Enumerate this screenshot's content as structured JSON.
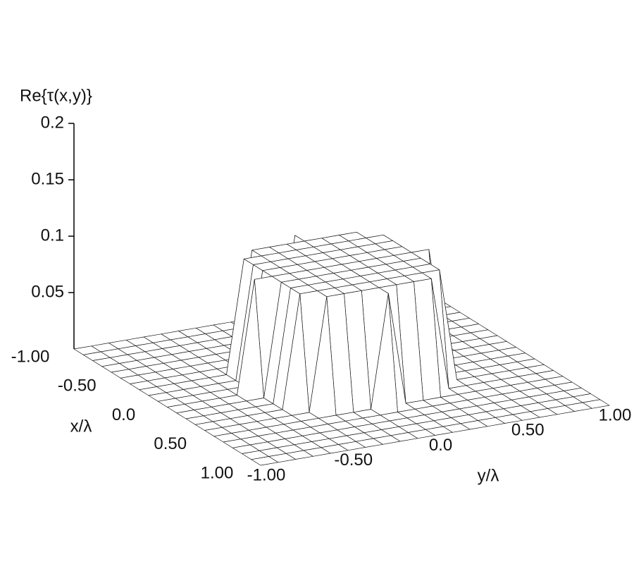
{
  "chart_data": {
    "type": "surface",
    "zlabel": "Re{τ(x,y)}",
    "xlabel": "x/λ",
    "ylabel": "y/λ",
    "zlim": [
      0,
      0.2
    ],
    "zticks": [
      0.05,
      0.1,
      0.15,
      0.2
    ],
    "xlim": [
      -1,
      1
    ],
    "xticks": [
      {
        "value": -1,
        "label": "-1.00"
      },
      {
        "value": -0.5,
        "label": "-0.50"
      },
      {
        "value": 0,
        "label": "0.0"
      },
      {
        "value": 0.5,
        "label": "0.50"
      },
      {
        "value": 1,
        "label": "1.00"
      }
    ],
    "ylim": [
      -1,
      1
    ],
    "yticks": [
      {
        "value": -1,
        "label": "-1.00"
      },
      {
        "value": -0.5,
        "label": "-0.50"
      },
      {
        "value": 0,
        "label": "0.0"
      },
      {
        "value": 0.5,
        "label": "0.50"
      },
      {
        "value": 1,
        "label": "1.00"
      }
    ],
    "x": [
      -1,
      -0.9,
      -0.8,
      -0.7,
      -0.6,
      -0.5,
      -0.4,
      -0.3,
      -0.2,
      -0.1,
      0,
      0.1,
      0.2,
      0.3,
      0.4,
      0.5,
      0.6,
      0.7,
      0.8,
      0.9,
      1
    ],
    "y": [
      -1,
      -0.9,
      -0.8,
      -0.7,
      -0.6,
      -0.5,
      -0.4,
      -0.3,
      -0.2,
      -0.1,
      0,
      0.1,
      0.2,
      0.3,
      0.4,
      0.5,
      0.6,
      0.7,
      0.8,
      0.9,
      1
    ],
    "z": [
      [
        0,
        0,
        0,
        0,
        0,
        0,
        0,
        0,
        0,
        0,
        0,
        0,
        0,
        0,
        0,
        0,
        0,
        0,
        0,
        0,
        0
      ],
      [
        0,
        0,
        0,
        0,
        0,
        0,
        0,
        0,
        0,
        0,
        0,
        0,
        0,
        0,
        0,
        0,
        0,
        0,
        0,
        0,
        0
      ],
      [
        0,
        0,
        0,
        0,
        0,
        0,
        0,
        0,
        0,
        0,
        0,
        0,
        0,
        0,
        0,
        0,
        0,
        0,
        0,
        0,
        0
      ],
      [
        0,
        0,
        0,
        0,
        0,
        0,
        0,
        0,
        0,
        0,
        0,
        0,
        0,
        0,
        0,
        0,
        0,
        0,
        0,
        0,
        0
      ],
      [
        0,
        0,
        0,
        0,
        0,
        0,
        0,
        0,
        0,
        0,
        0,
        0,
        0,
        0,
        0,
        0,
        0,
        0,
        0,
        0,
        0
      ],
      [
        0,
        0,
        0,
        0,
        0,
        0,
        0,
        0,
        0,
        0,
        0.1,
        0,
        0,
        0,
        0,
        0,
        0,
        0,
        0,
        0,
        0
      ],
      [
        0,
        0,
        0,
        0,
        0,
        0,
        0,
        0.1,
        0.1,
        0.1,
        0.1,
        0.1,
        0.1,
        0.1,
        0,
        0,
        0,
        0,
        0,
        0,
        0
      ],
      [
        0,
        0,
        0,
        0,
        0,
        0,
        0.1,
        0.1,
        0.1,
        0.1,
        0.1,
        0.1,
        0.1,
        0.1,
        0.1,
        0,
        0,
        0,
        0,
        0,
        0
      ],
      [
        0,
        0,
        0,
        0,
        0,
        0,
        0.1,
        0.1,
        0.1,
        0.1,
        0.1,
        0.1,
        0.1,
        0.1,
        0.1,
        0,
        0,
        0,
        0,
        0,
        0
      ],
      [
        0,
        0,
        0,
        0,
        0,
        0,
        0.1,
        0.1,
        0.1,
        0.1,
        0.1,
        0.1,
        0.1,
        0.1,
        0.1,
        0,
        0,
        0,
        0,
        0,
        0
      ],
      [
        0,
        0,
        0,
        0,
        0,
        0.1,
        0.1,
        0.1,
        0.1,
        0.1,
        0.1,
        0.1,
        0.1,
        0.1,
        0.1,
        0.1,
        0,
        0,
        0,
        0,
        0
      ],
      [
        0,
        0,
        0,
        0,
        0,
        0,
        0.1,
        0.1,
        0.1,
        0.1,
        0.1,
        0.1,
        0.1,
        0.1,
        0.1,
        0,
        0,
        0,
        0,
        0,
        0
      ],
      [
        0,
        0,
        0,
        0,
        0,
        0,
        0.1,
        0.1,
        0.1,
        0.1,
        0.1,
        0.1,
        0.1,
        0.1,
        0.1,
        0,
        0,
        0,
        0,
        0,
        0
      ],
      [
        0,
        0,
        0,
        0,
        0,
        0,
        0.1,
        0.1,
        0.1,
        0.1,
        0.1,
        0.1,
        0.1,
        0.1,
        0.1,
        0,
        0,
        0,
        0,
        0,
        0
      ],
      [
        0,
        0,
        0,
        0,
        0,
        0,
        0,
        0.1,
        0.1,
        0.1,
        0.1,
        0.1,
        0.1,
        0.1,
        0,
        0,
        0,
        0,
        0,
        0,
        0
      ],
      [
        0,
        0,
        0,
        0,
        0,
        0,
        0,
        0,
        0,
        0,
        0.1,
        0,
        0,
        0,
        0,
        0,
        0,
        0,
        0,
        0,
        0
      ],
      [
        0,
        0,
        0,
        0,
        0,
        0,
        0,
        0,
        0,
        0,
        0,
        0,
        0,
        0,
        0,
        0,
        0,
        0,
        0,
        0,
        0
      ],
      [
        0,
        0,
        0,
        0,
        0,
        0,
        0,
        0,
        0,
        0,
        0,
        0,
        0,
        0,
        0,
        0,
        0,
        0,
        0,
        0,
        0
      ],
      [
        0,
        0,
        0,
        0,
        0,
        0,
        0,
        0,
        0,
        0,
        0,
        0,
        0,
        0,
        0,
        0,
        0,
        0,
        0,
        0,
        0
      ],
      [
        0,
        0,
        0,
        0,
        0,
        0,
        0,
        0,
        0,
        0,
        0,
        0,
        0,
        0,
        0,
        0,
        0,
        0,
        0,
        0,
        0
      ],
      [
        0,
        0,
        0,
        0,
        0,
        0,
        0,
        0,
        0,
        0,
        0,
        0,
        0,
        0,
        0,
        0,
        0,
        0,
        0,
        0,
        0
      ]
    ]
  }
}
